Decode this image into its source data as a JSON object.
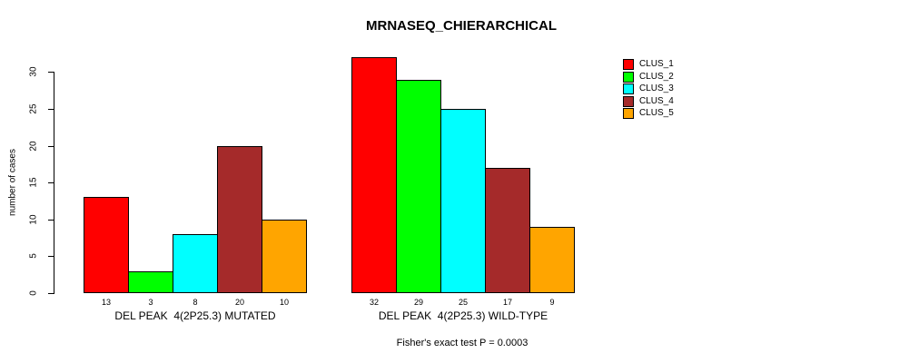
{
  "title": "MRNASEQ_CHIERARCHICAL",
  "chart_data": {
    "type": "bar",
    "title": "MRNASEQ_CHIERARCHICAL",
    "ylabel": "number of cases",
    "xlabel": "",
    "ylim": [
      0,
      32
    ],
    "yticks": [
      0,
      5,
      10,
      15,
      20,
      25,
      30
    ],
    "grid": false,
    "bar_border_color": "#000000",
    "series_colors": [
      "#ff0000",
      "#00ff00",
      "#00ffff",
      "#a52a2a",
      "#ffa500"
    ],
    "series_names": [
      "CLUS_1",
      "CLUS_2",
      "CLUS_3",
      "CLUS_4",
      "CLUS_5"
    ],
    "groups": [
      {
        "label": "DEL PEAK  4(2P25.3) MUTATED",
        "values": [
          13,
          3,
          8,
          20,
          10
        ]
      },
      {
        "label": "DEL PEAK  4(2P25.3) WILD-TYPE",
        "values": [
          32,
          29,
          25,
          17,
          9
        ]
      }
    ],
    "legend": {
      "position": "top-right",
      "entries": [
        "CLUS_1",
        "CLUS_2",
        "CLUS_3",
        "CLUS_4",
        "CLUS_5"
      ]
    },
    "annotation": "Fisher's exact test P = 0.0003"
  }
}
